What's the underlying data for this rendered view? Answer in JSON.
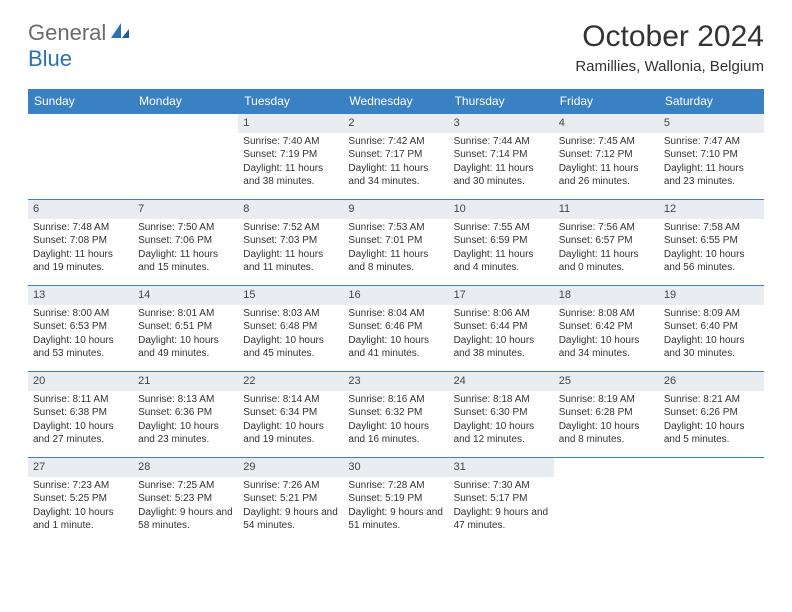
{
  "logo": {
    "general": "General",
    "blue": "Blue"
  },
  "title": "October 2024",
  "location": "Ramillies, Wallonia, Belgium",
  "colors": {
    "header_bg": "#3a81c4",
    "header_text": "#ffffff",
    "daynum_bg": "#e9edf1",
    "border": "#3a81c4",
    "text": "#333333",
    "logo_gray": "#6b6b6b",
    "logo_blue": "#2d72b5"
  },
  "weekdays": [
    "Sunday",
    "Monday",
    "Tuesday",
    "Wednesday",
    "Thursday",
    "Friday",
    "Saturday"
  ],
  "weeks": [
    [
      null,
      null,
      {
        "n": "1",
        "sr": "Sunrise: 7:40 AM",
        "ss": "Sunset: 7:19 PM",
        "dl": "Daylight: 11 hours and 38 minutes."
      },
      {
        "n": "2",
        "sr": "Sunrise: 7:42 AM",
        "ss": "Sunset: 7:17 PM",
        "dl": "Daylight: 11 hours and 34 minutes."
      },
      {
        "n": "3",
        "sr": "Sunrise: 7:44 AM",
        "ss": "Sunset: 7:14 PM",
        "dl": "Daylight: 11 hours and 30 minutes."
      },
      {
        "n": "4",
        "sr": "Sunrise: 7:45 AM",
        "ss": "Sunset: 7:12 PM",
        "dl": "Daylight: 11 hours and 26 minutes."
      },
      {
        "n": "5",
        "sr": "Sunrise: 7:47 AM",
        "ss": "Sunset: 7:10 PM",
        "dl": "Daylight: 11 hours and 23 minutes."
      }
    ],
    [
      {
        "n": "6",
        "sr": "Sunrise: 7:48 AM",
        "ss": "Sunset: 7:08 PM",
        "dl": "Daylight: 11 hours and 19 minutes."
      },
      {
        "n": "7",
        "sr": "Sunrise: 7:50 AM",
        "ss": "Sunset: 7:06 PM",
        "dl": "Daylight: 11 hours and 15 minutes."
      },
      {
        "n": "8",
        "sr": "Sunrise: 7:52 AM",
        "ss": "Sunset: 7:03 PM",
        "dl": "Daylight: 11 hours and 11 minutes."
      },
      {
        "n": "9",
        "sr": "Sunrise: 7:53 AM",
        "ss": "Sunset: 7:01 PM",
        "dl": "Daylight: 11 hours and 8 minutes."
      },
      {
        "n": "10",
        "sr": "Sunrise: 7:55 AM",
        "ss": "Sunset: 6:59 PM",
        "dl": "Daylight: 11 hours and 4 minutes."
      },
      {
        "n": "11",
        "sr": "Sunrise: 7:56 AM",
        "ss": "Sunset: 6:57 PM",
        "dl": "Daylight: 11 hours and 0 minutes."
      },
      {
        "n": "12",
        "sr": "Sunrise: 7:58 AM",
        "ss": "Sunset: 6:55 PM",
        "dl": "Daylight: 10 hours and 56 minutes."
      }
    ],
    [
      {
        "n": "13",
        "sr": "Sunrise: 8:00 AM",
        "ss": "Sunset: 6:53 PM",
        "dl": "Daylight: 10 hours and 53 minutes."
      },
      {
        "n": "14",
        "sr": "Sunrise: 8:01 AM",
        "ss": "Sunset: 6:51 PM",
        "dl": "Daylight: 10 hours and 49 minutes."
      },
      {
        "n": "15",
        "sr": "Sunrise: 8:03 AM",
        "ss": "Sunset: 6:48 PM",
        "dl": "Daylight: 10 hours and 45 minutes."
      },
      {
        "n": "16",
        "sr": "Sunrise: 8:04 AM",
        "ss": "Sunset: 6:46 PM",
        "dl": "Daylight: 10 hours and 41 minutes."
      },
      {
        "n": "17",
        "sr": "Sunrise: 8:06 AM",
        "ss": "Sunset: 6:44 PM",
        "dl": "Daylight: 10 hours and 38 minutes."
      },
      {
        "n": "18",
        "sr": "Sunrise: 8:08 AM",
        "ss": "Sunset: 6:42 PM",
        "dl": "Daylight: 10 hours and 34 minutes."
      },
      {
        "n": "19",
        "sr": "Sunrise: 8:09 AM",
        "ss": "Sunset: 6:40 PM",
        "dl": "Daylight: 10 hours and 30 minutes."
      }
    ],
    [
      {
        "n": "20",
        "sr": "Sunrise: 8:11 AM",
        "ss": "Sunset: 6:38 PM",
        "dl": "Daylight: 10 hours and 27 minutes."
      },
      {
        "n": "21",
        "sr": "Sunrise: 8:13 AM",
        "ss": "Sunset: 6:36 PM",
        "dl": "Daylight: 10 hours and 23 minutes."
      },
      {
        "n": "22",
        "sr": "Sunrise: 8:14 AM",
        "ss": "Sunset: 6:34 PM",
        "dl": "Daylight: 10 hours and 19 minutes."
      },
      {
        "n": "23",
        "sr": "Sunrise: 8:16 AM",
        "ss": "Sunset: 6:32 PM",
        "dl": "Daylight: 10 hours and 16 minutes."
      },
      {
        "n": "24",
        "sr": "Sunrise: 8:18 AM",
        "ss": "Sunset: 6:30 PM",
        "dl": "Daylight: 10 hours and 12 minutes."
      },
      {
        "n": "25",
        "sr": "Sunrise: 8:19 AM",
        "ss": "Sunset: 6:28 PM",
        "dl": "Daylight: 10 hours and 8 minutes."
      },
      {
        "n": "26",
        "sr": "Sunrise: 8:21 AM",
        "ss": "Sunset: 6:26 PM",
        "dl": "Daylight: 10 hours and 5 minutes."
      }
    ],
    [
      {
        "n": "27",
        "sr": "Sunrise: 7:23 AM",
        "ss": "Sunset: 5:25 PM",
        "dl": "Daylight: 10 hours and 1 minute."
      },
      {
        "n": "28",
        "sr": "Sunrise: 7:25 AM",
        "ss": "Sunset: 5:23 PM",
        "dl": "Daylight: 9 hours and 58 minutes."
      },
      {
        "n": "29",
        "sr": "Sunrise: 7:26 AM",
        "ss": "Sunset: 5:21 PM",
        "dl": "Daylight: 9 hours and 54 minutes."
      },
      {
        "n": "30",
        "sr": "Sunrise: 7:28 AM",
        "ss": "Sunset: 5:19 PM",
        "dl": "Daylight: 9 hours and 51 minutes."
      },
      {
        "n": "31",
        "sr": "Sunrise: 7:30 AM",
        "ss": "Sunset: 5:17 PM",
        "dl": "Daylight: 9 hours and 47 minutes."
      },
      null,
      null
    ]
  ]
}
